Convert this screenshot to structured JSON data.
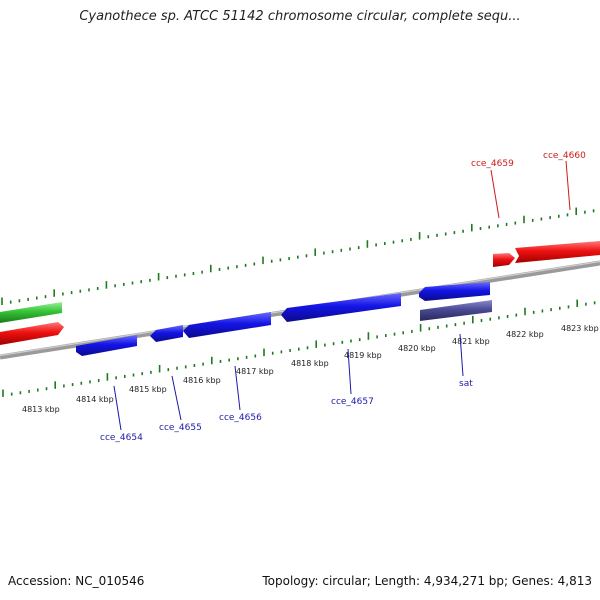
{
  "header": {
    "title": "Cyanothece sp. ATCC 51142 chromosome circular, complete sequ..."
  },
  "footer": {
    "accession": "Accession: NC_010546",
    "summary": "Topology: circular; Length: 4,934,271 bp; Genes: 4,813"
  },
  "ticks": [
    {
      "label": "4813 kbp"
    },
    {
      "label": "4814 kbp"
    },
    {
      "label": "4815 kbp"
    },
    {
      "label": "4816 kbp"
    },
    {
      "label": "4817 kbp"
    },
    {
      "label": "4818 kbp"
    },
    {
      "label": "4819 kbp"
    },
    {
      "label": "4820 kbp"
    },
    {
      "label": "4821 kbp"
    },
    {
      "label": "4822 kbp"
    },
    {
      "label": "4823 kbp"
    }
  ],
  "gene_labels": [
    {
      "text": "cce_4654",
      "color": "#1a1aa8"
    },
    {
      "text": "cce_4655",
      "color": "#1a1aa8"
    },
    {
      "text": "cce_4656",
      "color": "#1a1aa8"
    },
    {
      "text": "cce_4657",
      "color": "#1a1aa8"
    },
    {
      "text": "sat",
      "color": "#1a1aa8"
    },
    {
      "text": "cce_4659",
      "color": "#cc1a1a"
    },
    {
      "text": "cce_4660",
      "color": "#cc1a1a"
    }
  ],
  "colors": {
    "forward_cds": "#e01818",
    "reverse_cds": "#1a1ae0",
    "rna": "#3ccc3c",
    "other_feature": "#4a4a8c",
    "backbone": "#7a7a7a",
    "tick": "#1e7a1e"
  }
}
